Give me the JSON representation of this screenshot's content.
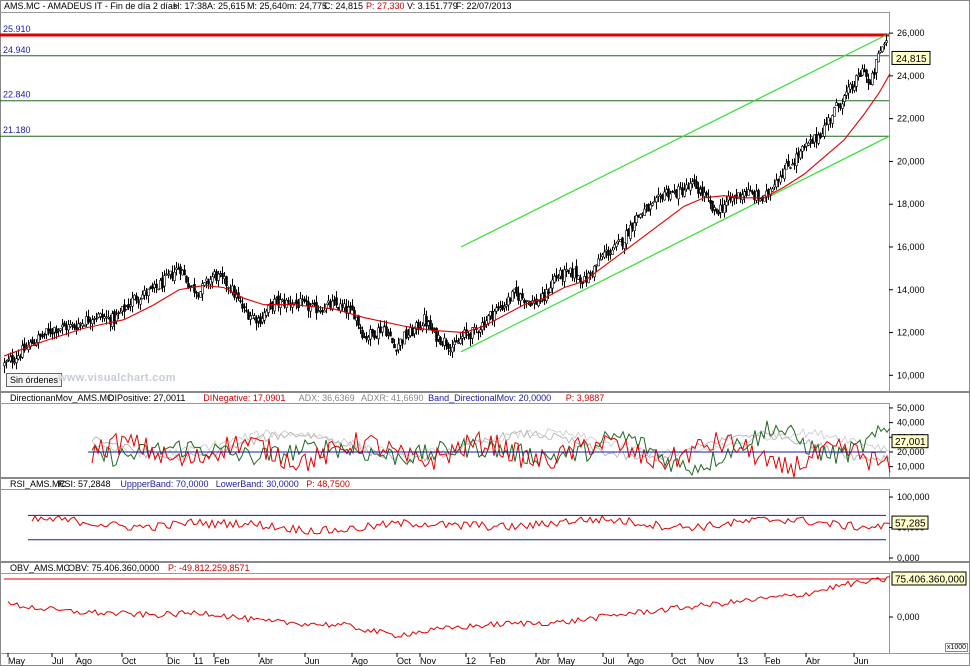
{
  "header": {
    "symbol": "AMS.MC - AMADEUS IT - Fin de día 2 días",
    "hour": "H: 17:38",
    "open": "A: 25,615",
    "high": "M: 25,640",
    "low": "m: 24,775",
    "close": "C: 24,815",
    "p": "P: 27,330",
    "volume": "V: 3.151.779",
    "date": "F: 22/07/2013"
  },
  "levels": [
    {
      "label": "25.910",
      "value": 25.91,
      "color": "#e00000"
    },
    {
      "label": "24.940",
      "value": 24.94,
      "color": "#226622"
    },
    {
      "label": "22.840",
      "value": 22.84,
      "color": "#226622"
    },
    {
      "label": "21.180",
      "value": 21.18,
      "color": "#226622"
    }
  ],
  "sin_ordenes": "Sin órdenes",
  "watermark": "www.visualchart.com",
  "x1000": "x1000",
  "colors": {
    "candle": "#000000",
    "ma": "#e00000",
    "channel": "#33dd33",
    "blue": "#1a1aa6",
    "grey": "#aaaaaa",
    "darkgreen": "#226622",
    "box": "#ffffcc"
  },
  "x_axis_labels": [
    "May",
    "Jul",
    "Ago",
    "Oct",
    "Dic",
    "11",
    "Feb",
    "Abr",
    "Jun",
    "Ago",
    "Oct",
    "Nov",
    "12",
    "Feb",
    "Abr",
    "May",
    "Jul",
    "Ago",
    "Oct",
    "Nov",
    "13",
    "Feb",
    "Abr",
    "Jun"
  ],
  "chart_data": [
    {
      "type": "candlestick",
      "title": "AMS.MC - AMADEUS IT",
      "ylim": [
        9.5,
        26.8
      ],
      "y_ticks": [
        "26,000",
        "24,000",
        "22,000",
        "20,000",
        "18,000",
        "16,000",
        "14,000",
        "12,000",
        "10,000"
      ],
      "last_value": "24,815",
      "price_path": [
        [
          0,
          10.5
        ],
        [
          15,
          11.0
        ],
        [
          30,
          11.6
        ],
        [
          50,
          12.2
        ],
        [
          70,
          12.3
        ],
        [
          90,
          12.8
        ],
        [
          110,
          12.6
        ],
        [
          130,
          13.6
        ],
        [
          150,
          14.0
        ],
        [
          165,
          14.6
        ],
        [
          175,
          15.1
        ],
        [
          185,
          14.2
        ],
        [
          195,
          13.9
        ],
        [
          210,
          14.7
        ],
        [
          225,
          14.2
        ],
        [
          240,
          13.0
        ],
        [
          255,
          12.6
        ],
        [
          270,
          13.4
        ],
        [
          290,
          13.4
        ],
        [
          310,
          13.1
        ],
        [
          330,
          13.3
        ],
        [
          350,
          12.9
        ],
        [
          360,
          11.8
        ],
        [
          370,
          12.0
        ],
        [
          380,
          12.3
        ],
        [
          390,
          11.3
        ],
        [
          400,
          11.8
        ],
        [
          410,
          12.1
        ],
        [
          420,
          12.6
        ],
        [
          430,
          11.9
        ],
        [
          440,
          11.6
        ],
        [
          450,
          11.3
        ],
        [
          460,
          11.9
        ],
        [
          470,
          12.0
        ],
        [
          480,
          12.5
        ],
        [
          490,
          13.0
        ],
        [
          500,
          13.3
        ],
        [
          510,
          13.8
        ],
        [
          520,
          13.6
        ],
        [
          530,
          13.4
        ],
        [
          540,
          13.6
        ],
        [
          550,
          14.6
        ],
        [
          560,
          14.7
        ],
        [
          570,
          14.8
        ],
        [
          580,
          14.4
        ],
        [
          590,
          15.0
        ],
        [
          600,
          15.7
        ],
        [
          610,
          15.9
        ],
        [
          620,
          16.4
        ],
        [
          630,
          17.3
        ],
        [
          640,
          17.7
        ],
        [
          650,
          17.9
        ],
        [
          660,
          18.6
        ],
        [
          670,
          18.5
        ],
        [
          680,
          18.7
        ],
        [
          690,
          18.9
        ],
        [
          700,
          18.4
        ],
        [
          710,
          17.6
        ],
        [
          720,
          18.0
        ],
        [
          730,
          18.3
        ],
        [
          740,
          18.6
        ],
        [
          750,
          18.4
        ],
        [
          760,
          18.2
        ],
        [
          770,
          19.1
        ],
        [
          780,
          19.6
        ],
        [
          790,
          20.1
        ],
        [
          800,
          20.6
        ],
        [
          810,
          21.0
        ],
        [
          820,
          21.6
        ],
        [
          830,
          22.4
        ],
        [
          840,
          23.0
        ],
        [
          850,
          23.6
        ],
        [
          860,
          24.4
        ],
        [
          865,
          23.4
        ],
        [
          870,
          24.2
        ],
        [
          875,
          25.1
        ],
        [
          880,
          25.5
        ],
        [
          883,
          25.9
        ],
        [
          886,
          24.8
        ]
      ],
      "ma_path": [
        [
          0,
          10.9
        ],
        [
          40,
          11.6
        ],
        [
          80,
          12.2
        ],
        [
          120,
          12.6
        ],
        [
          150,
          13.3
        ],
        [
          175,
          14.0
        ],
        [
          200,
          14.2
        ],
        [
          220,
          14.1
        ],
        [
          240,
          13.6
        ],
        [
          260,
          13.3
        ],
        [
          290,
          13.3
        ],
        [
          330,
          13.1
        ],
        [
          360,
          12.7
        ],
        [
          400,
          12.3
        ],
        [
          430,
          12.1
        ],
        [
          460,
          12.0
        ],
        [
          480,
          12.3
        ],
        [
          500,
          12.8
        ],
        [
          520,
          13.3
        ],
        [
          540,
          13.6
        ],
        [
          560,
          14.1
        ],
        [
          580,
          14.4
        ],
        [
          600,
          15.1
        ],
        [
          620,
          15.8
        ],
        [
          640,
          16.5
        ],
        [
          660,
          17.2
        ],
        [
          680,
          17.9
        ],
        [
          700,
          18.3
        ],
        [
          720,
          18.4
        ],
        [
          740,
          18.3
        ],
        [
          760,
          18.3
        ],
        [
          780,
          18.8
        ],
        [
          800,
          19.4
        ],
        [
          820,
          20.2
        ],
        [
          840,
          21.0
        ],
        [
          860,
          22.2
        ],
        [
          875,
          23.2
        ],
        [
          886,
          24.1
        ]
      ],
      "channel_upper": [
        [
          457,
          16.0
        ],
        [
          886,
          26.0
        ]
      ],
      "channel_lower": [
        [
          457,
          11.1
        ],
        [
          886,
          21.2
        ]
      ]
    },
    {
      "type": "line",
      "title": "DirectionanMov_AMS.MC",
      "legend": [
        "DIPositive: 27,0011",
        "DINegative: 17,0901",
        "ADX: 36,6369",
        "ADXR: 41,6690",
        "Band_DirectionalMov: 20,0000",
        "P: 3,9887"
      ],
      "ylim": [
        5,
        52
      ],
      "y_ticks": [
        "50,000",
        "40,000",
        "30,000",
        "20,000",
        "10,000"
      ],
      "last_value": "27,001",
      "band": 20
    },
    {
      "type": "line",
      "title": "RSI_AMS.MC",
      "legend": [
        "RSI: 57,2848",
        "UppperBand: 70,0000",
        "LowerBand: 30,0000",
        "P: 48,7500"
      ],
      "ylim": [
        0,
        105
      ],
      "y_ticks": [
        "100,000",
        "50,000",
        "0,000"
      ],
      "last_value": "57,285",
      "upper": 70,
      "lower": 30
    },
    {
      "type": "line",
      "title": "OBV_AMS.MC",
      "legend": [
        "OBV: 75.406.360,0000",
        "P: -49.812.259,8571"
      ],
      "y_ticks": [
        "0,000"
      ],
      "last_value": "75.406.360,000"
    }
  ]
}
